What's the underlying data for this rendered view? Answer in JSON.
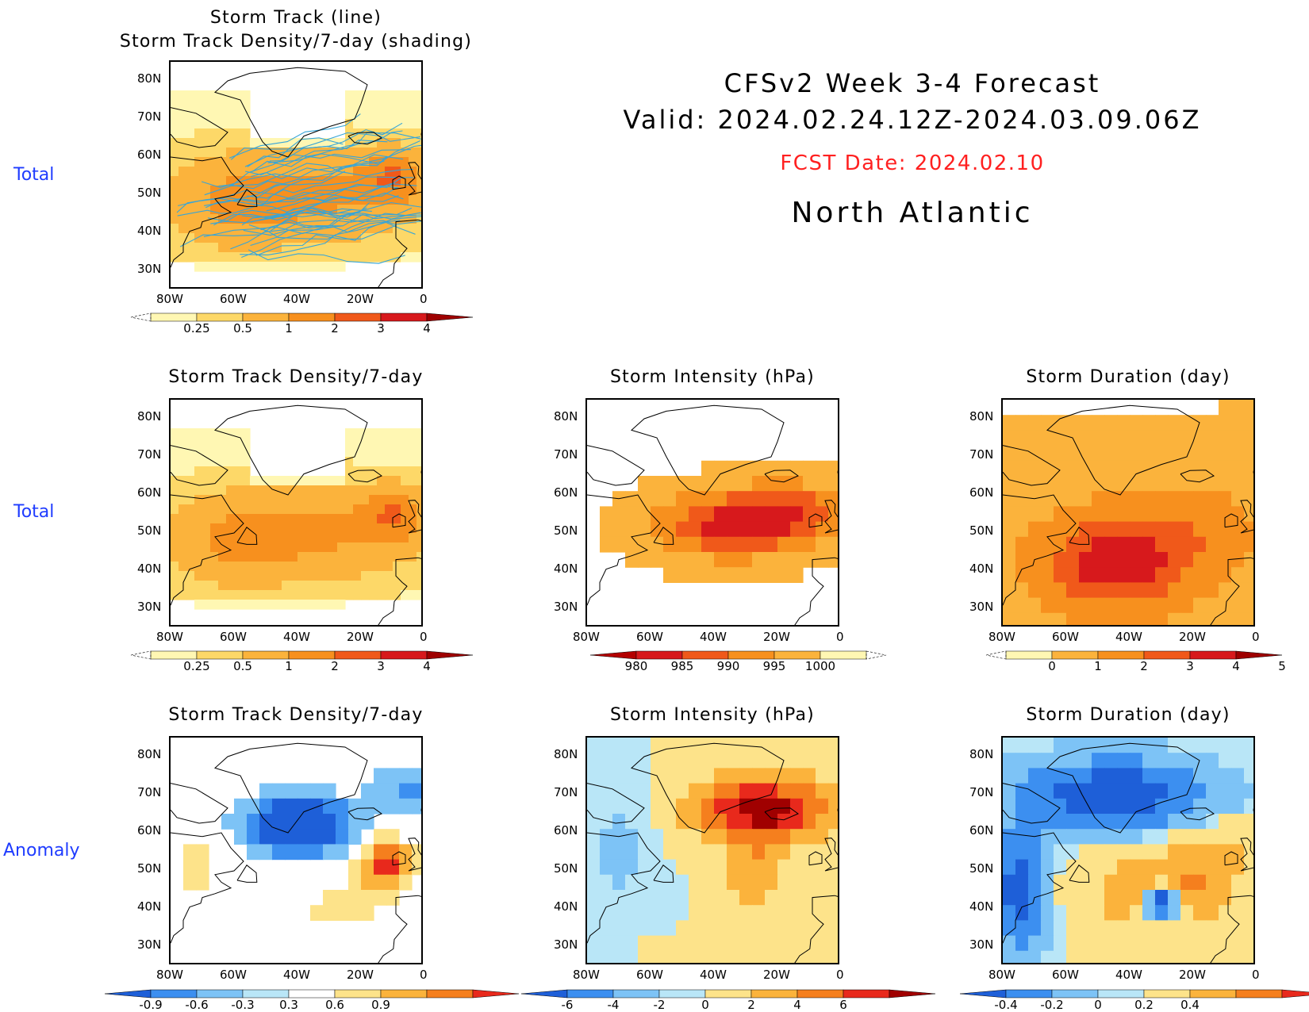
{
  "header": {
    "title_line1": "CFSv2 Week 3-4 Forecast",
    "title_line2": "Valid: 2024.02.24.12Z-2024.03.09.06Z",
    "fcst_date": "FCST Date: 2024.02.10",
    "region": "North Atlantic"
  },
  "row_labels": [
    "Total",
    "Total",
    "Anomaly"
  ],
  "axes": {
    "lat_labels": [
      "80N",
      "70N",
      "60N",
      "50N",
      "40N",
      "30N"
    ],
    "lon_labels": [
      "80W",
      "60W",
      "40W",
      "20W",
      "0"
    ]
  },
  "panels": [
    {
      "id": "p1",
      "title_line1": "Storm Track (line)",
      "title_line2": "Storm Track Density/7-day (shading)",
      "pattern": "density_total",
      "tracks": true,
      "colorbar": {
        "colors": [
          "#fff7b3",
          "#fdd868",
          "#fbb33c",
          "#f7901e",
          "#f0591a",
          "#d7191c",
          "#9e0000"
        ],
        "labels": [
          "0.25",
          "0.5",
          "1",
          "2",
          "3",
          "4"
        ],
        "ends": [
          "under-dashed",
          "triangle"
        ]
      }
    },
    {
      "id": "p2",
      "title_line1": "Storm Track Density/7-day",
      "pattern": "density_total",
      "tracks": false,
      "colorbar": {
        "colors": [
          "#fff7b3",
          "#fdd868",
          "#fbb33c",
          "#f7901e",
          "#f0591a",
          "#d7191c",
          "#9e0000"
        ],
        "labels": [
          "0.25",
          "0.5",
          "1",
          "2",
          "3",
          "4"
        ],
        "ends": [
          "under-dashed",
          "triangle"
        ]
      }
    },
    {
      "id": "p3",
      "title_line1": "Storm Intensity (hPa)",
      "pattern": "intensity_total",
      "tracks": false,
      "colorbar": {
        "colors": [
          "#b30000",
          "#d7191c",
          "#f0591a",
          "#f7901e",
          "#fbb33c",
          "#fff7b3"
        ],
        "labels": [
          "980",
          "985",
          "990",
          "995",
          "1000"
        ],
        "ends": [
          "triangle",
          "over-dashed"
        ]
      }
    },
    {
      "id": "p4",
      "title_line1": "Storm Duration (day)",
      "pattern": "duration_total",
      "tracks": false,
      "colorbar": {
        "colors": [
          "#fff7b3",
          "#fbb33c",
          "#f7901e",
          "#f0591a",
          "#d7191c",
          "#9e0000"
        ],
        "labels": [
          "0",
          "1",
          "2",
          "3",
          "4",
          "5"
        ],
        "ends": [
          "under-dashed",
          "triangle"
        ]
      }
    },
    {
      "id": "p5",
      "title_line1": "Storm Track Density/7-day",
      "pattern": "density_anom",
      "tracks": false,
      "colorbar": {
        "colors": [
          "#1e5fd8",
          "#3c8ff0",
          "#7dc3f6",
          "#b9e6f7",
          "#ffffff",
          "#fde38a",
          "#fbb33c",
          "#f57f1e",
          "#e8291c"
        ],
        "labels": [
          "-0.9",
          "-0.6",
          "-0.3",
          "0.3",
          "0.6",
          "0.9"
        ],
        "ends": [
          "triangle",
          "triangle"
        ]
      }
    },
    {
      "id": "p6",
      "title_line1": "Storm Intensity (hPa)",
      "pattern": "intensity_anom",
      "tracks": false,
      "colorbar": {
        "colors": [
          "#1e5fd8",
          "#3c8ff0",
          "#7dc3f6",
          "#b9e6f7",
          "#fde38a",
          "#fbb33c",
          "#f57f1e",
          "#e8291c",
          "#a00000"
        ],
        "labels": [
          "-6",
          "-4",
          "-2",
          "0",
          "2",
          "4",
          "6"
        ],
        "ends": [
          "triangle",
          "triangle"
        ]
      }
    },
    {
      "id": "p7",
      "title_line1": "Storm Duration (day)",
      "pattern": "duration_anom",
      "tracks": false,
      "colorbar": {
        "colors": [
          "#1e5fd8",
          "#3c8ff0",
          "#7dc3f6",
          "#b9e6f7",
          "#fde38a",
          "#fbb33c",
          "#f57f1e",
          "#e8291c"
        ],
        "labels": [
          "-0.4",
          "-0.2",
          "0",
          "0.2",
          "0.4"
        ],
        "ends": [
          "triangle",
          "triangle"
        ]
      }
    }
  ]
}
